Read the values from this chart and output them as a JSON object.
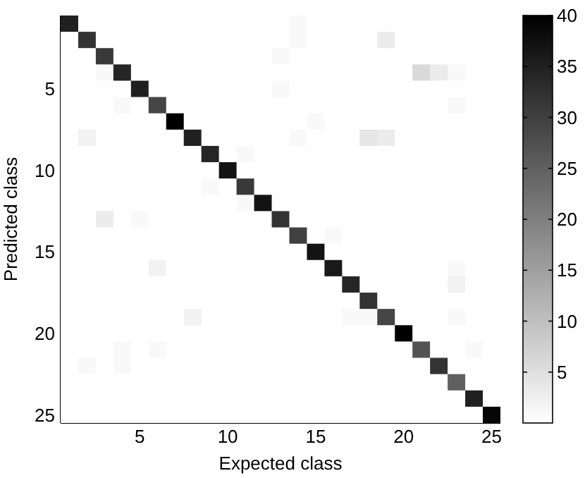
{
  "chart_data": {
    "type": "heatmap",
    "xlabel": "Expected class",
    "ylabel": "Predicted class",
    "categories": [
      null,
      null,
      null,
      null,
      "5",
      null,
      null,
      null,
      null,
      "10",
      null,
      null,
      null,
      null,
      "15",
      null,
      null,
      null,
      null,
      "20",
      null,
      null,
      null,
      null,
      "25"
    ],
    "y_categories": [
      null,
      null,
      null,
      null,
      "5",
      null,
      null,
      null,
      null,
      "10",
      null,
      null,
      null,
      null,
      "15",
      null,
      null,
      null,
      null,
      "20",
      null,
      null,
      null,
      null,
      "25"
    ],
    "cells": [
      [
        35,
        0,
        0,
        0,
        0,
        0,
        0,
        0,
        0,
        0,
        0,
        0,
        0,
        1,
        0,
        0,
        0,
        0,
        0,
        0,
        0,
        0,
        0,
        0,
        0
      ],
      [
        0,
        32,
        0,
        0,
        0,
        0,
        0,
        0,
        0,
        0,
        0,
        0,
        0,
        1,
        0,
        0,
        0,
        0,
        3,
        0,
        0,
        0,
        0,
        0,
        0
      ],
      [
        0,
        0,
        31,
        0,
        0,
        0,
        0,
        0,
        0,
        0,
        0,
        0,
        1,
        0,
        0,
        0,
        0,
        0,
        0,
        0,
        0,
        0,
        0,
        0,
        0
      ],
      [
        0,
        0,
        1,
        34,
        0,
        0,
        0,
        0,
        0,
        0,
        0,
        0,
        0,
        0,
        0,
        0,
        0,
        0,
        0,
        0,
        6,
        3,
        1,
        0,
        0
      ],
      [
        0,
        0,
        0,
        0,
        35,
        0,
        0,
        0,
        0,
        0,
        0,
        0,
        1,
        0,
        0,
        0,
        0,
        0,
        0,
        0,
        0,
        0,
        0,
        0,
        0
      ],
      [
        0,
        0,
        0,
        1,
        0,
        29,
        0,
        0,
        0,
        0,
        0,
        0,
        0,
        0,
        0,
        0,
        0,
        0,
        0,
        0,
        0,
        0,
        1,
        0,
        0
      ],
      [
        0,
        0,
        0,
        0,
        0,
        0,
        40,
        0,
        0,
        0,
        0,
        0,
        0,
        0,
        1,
        0,
        0,
        0,
        0,
        0,
        0,
        0,
        0,
        0,
        0
      ],
      [
        0,
        2,
        0,
        0,
        0,
        0,
        0,
        35,
        0,
        0,
        0,
        0,
        0,
        1,
        0,
        0,
        0,
        4,
        3,
        0,
        0,
        0,
        0,
        0,
        0
      ],
      [
        0,
        0,
        0,
        0,
        0,
        0,
        0,
        0,
        34,
        0,
        1,
        0,
        0,
        0,
        0,
        0,
        0,
        0,
        0,
        0,
        0,
        0,
        0,
        0,
        0
      ],
      [
        0,
        0,
        0,
        0,
        0,
        0,
        0,
        0,
        0,
        37,
        0,
        0,
        0,
        0,
        0,
        0,
        0,
        0,
        0,
        0,
        0,
        0,
        0,
        0,
        0
      ],
      [
        0,
        0,
        0,
        0,
        0,
        0,
        0,
        0,
        1,
        0,
        31,
        0,
        0,
        0,
        0,
        0,
        0,
        0,
        0,
        0,
        0,
        0,
        0,
        0,
        0
      ],
      [
        0,
        0,
        0,
        0,
        0,
        0,
        0,
        0,
        0,
        0,
        1,
        37,
        0,
        0,
        0,
        0,
        0,
        0,
        0,
        0,
        0,
        0,
        0,
        0,
        0
      ],
      [
        0,
        0,
        3,
        0,
        1,
        0,
        0,
        0,
        0,
        0,
        0,
        0,
        32,
        0,
        0,
        0,
        0,
        0,
        0,
        0,
        0,
        0,
        0,
        0,
        0
      ],
      [
        0,
        0,
        0,
        0,
        0,
        0,
        0,
        0,
        0,
        0,
        0,
        0,
        0,
        30,
        0,
        1,
        0,
        0,
        0,
        0,
        0,
        0,
        0,
        0,
        0
      ],
      [
        0,
        0,
        0,
        0,
        0,
        0,
        0,
        0,
        0,
        0,
        0,
        0,
        0,
        0,
        37,
        0,
        0,
        0,
        0,
        0,
        0,
        0,
        0,
        0,
        0
      ],
      [
        0,
        0,
        0,
        0,
        0,
        2,
        0,
        0,
        0,
        0,
        0,
        0,
        0,
        0,
        0,
        36,
        0,
        0,
        0,
        0,
        0,
        0,
        1,
        0,
        0
      ],
      [
        0,
        0,
        0,
        0,
        0,
        0,
        0,
        0,
        0,
        0,
        0,
        0,
        0,
        0,
        0,
        0,
        34,
        0,
        0,
        0,
        0,
        0,
        2,
        0,
        0
      ],
      [
        0,
        0,
        0,
        0,
        0,
        0,
        0,
        0,
        0,
        0,
        0,
        0,
        0,
        0,
        0,
        0,
        0,
        32,
        0,
        0,
        0,
        0,
        0,
        0,
        0
      ],
      [
        0,
        0,
        0,
        0,
        0,
        0,
        0,
        2,
        0,
        0,
        0,
        0,
        0,
        0,
        0,
        0,
        1,
        1,
        29,
        0,
        0,
        0,
        1,
        0,
        0
      ],
      [
        0,
        0,
        0,
        0,
        0,
        0,
        0,
        0,
        0,
        0,
        0,
        0,
        0,
        0,
        0,
        0,
        0,
        0,
        0,
        40,
        0,
        0,
        0,
        0,
        0
      ],
      [
        0,
        0,
        0,
        1,
        0,
        1,
        0,
        0,
        0,
        0,
        0,
        0,
        0,
        0,
        0,
        0,
        0,
        0,
        0,
        0,
        27,
        0,
        0,
        1,
        0
      ],
      [
        0,
        1,
        0,
        1,
        0,
        0,
        0,
        0,
        0,
        0,
        0,
        0,
        0,
        0,
        0,
        0,
        0,
        0,
        0,
        0,
        0,
        32,
        0,
        0,
        0
      ],
      [
        0,
        0,
        0,
        0,
        0,
        0,
        0,
        0,
        0,
        0,
        0,
        0,
        0,
        0,
        0,
        0,
        0,
        0,
        0,
        0,
        0,
        0,
        25,
        0,
        0
      ],
      [
        0,
        0,
        0,
        0,
        0,
        0,
        0,
        0,
        0,
        0,
        0,
        0,
        0,
        0,
        0,
        0,
        0,
        0,
        0,
        0,
        0,
        0,
        0,
        35,
        0
      ],
      [
        0,
        0,
        0,
        0,
        0,
        0,
        0,
        0,
        0,
        0,
        0,
        0,
        0,
        0,
        0,
        0,
        0,
        0,
        0,
        0,
        0,
        0,
        0,
        0,
        39
      ]
    ],
    "clim": [
      0,
      40
    ],
    "cticks": [
      5,
      10,
      15,
      20,
      25,
      30,
      35,
      40
    ]
  }
}
